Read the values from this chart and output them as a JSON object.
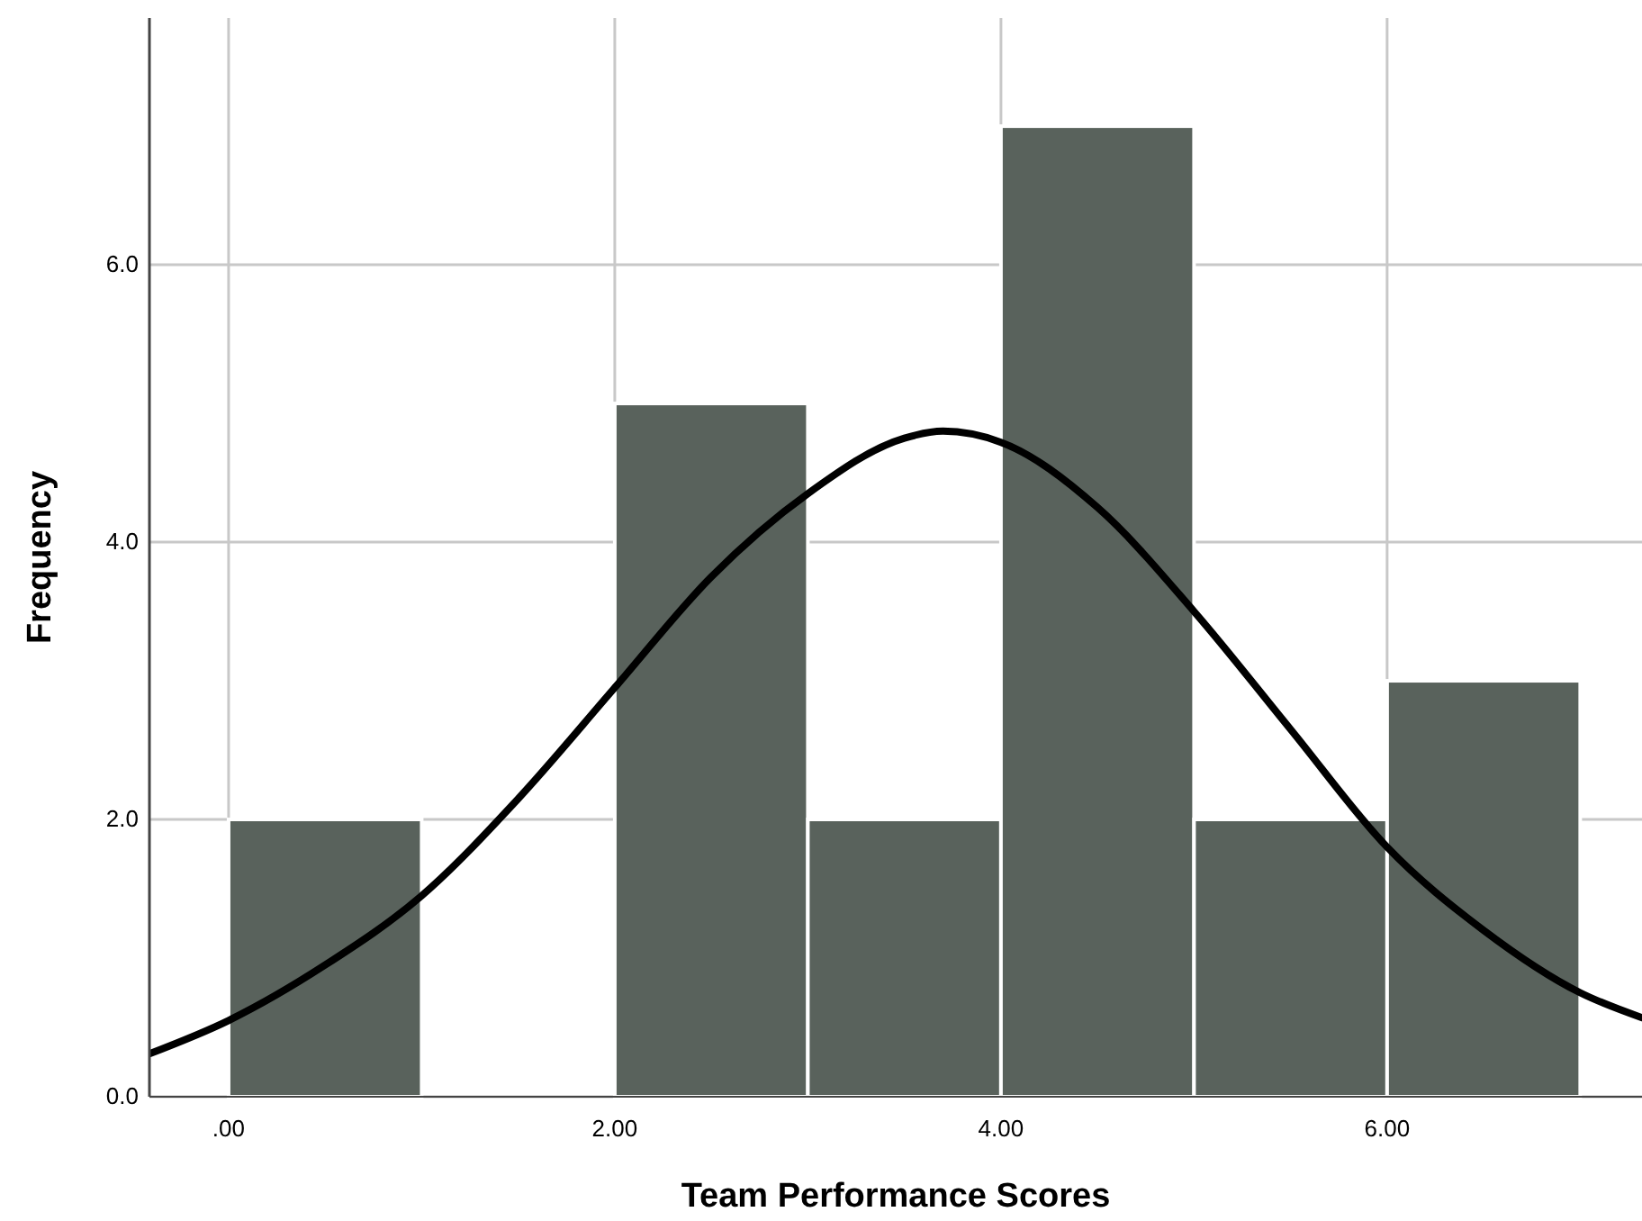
{
  "chart_data": {
    "type": "histogram",
    "xlabel": "Team Performance Scores",
    "ylabel": "Frequency",
    "bins": [
      0,
      1,
      2,
      3,
      4,
      5,
      6,
      7
    ],
    "xlim": [
      -0.41,
      7.32
    ],
    "ylim": [
      0,
      7.78
    ],
    "xticks": [
      {
        "value": 0,
        "label": ".00"
      },
      {
        "value": 2,
        "label": "2.00"
      },
      {
        "value": 4,
        "label": "4.00"
      },
      {
        "value": 6,
        "label": "6.00"
      }
    ],
    "yticks": [
      {
        "value": 0,
        "label": "0.0"
      },
      {
        "value": 2,
        "label": "2.0"
      },
      {
        "value": 4,
        "label": "4.0"
      },
      {
        "value": 6,
        "label": "6.0"
      }
    ],
    "grid": true,
    "series": [
      {
        "color": "#59625c",
        "values": [
          2,
          0,
          5,
          2,
          7,
          2,
          3
        ]
      },
      {
        "type": "line",
        "color": "#000000",
        "x": [
          -0.41,
          0,
          0.5,
          1,
          1.5,
          2,
          2.5,
          3,
          3.5,
          3.7,
          4,
          4.5,
          5,
          5.5,
          6,
          6.5,
          7,
          7.32
        ],
        "values": [
          0.31,
          0.55,
          0.95,
          1.45,
          2.15,
          2.95,
          3.75,
          4.35,
          4.75,
          4.8,
          4.72,
          4.25,
          3.5,
          2.65,
          1.8,
          1.2,
          0.75,
          0.57
        ]
      }
    ]
  }
}
